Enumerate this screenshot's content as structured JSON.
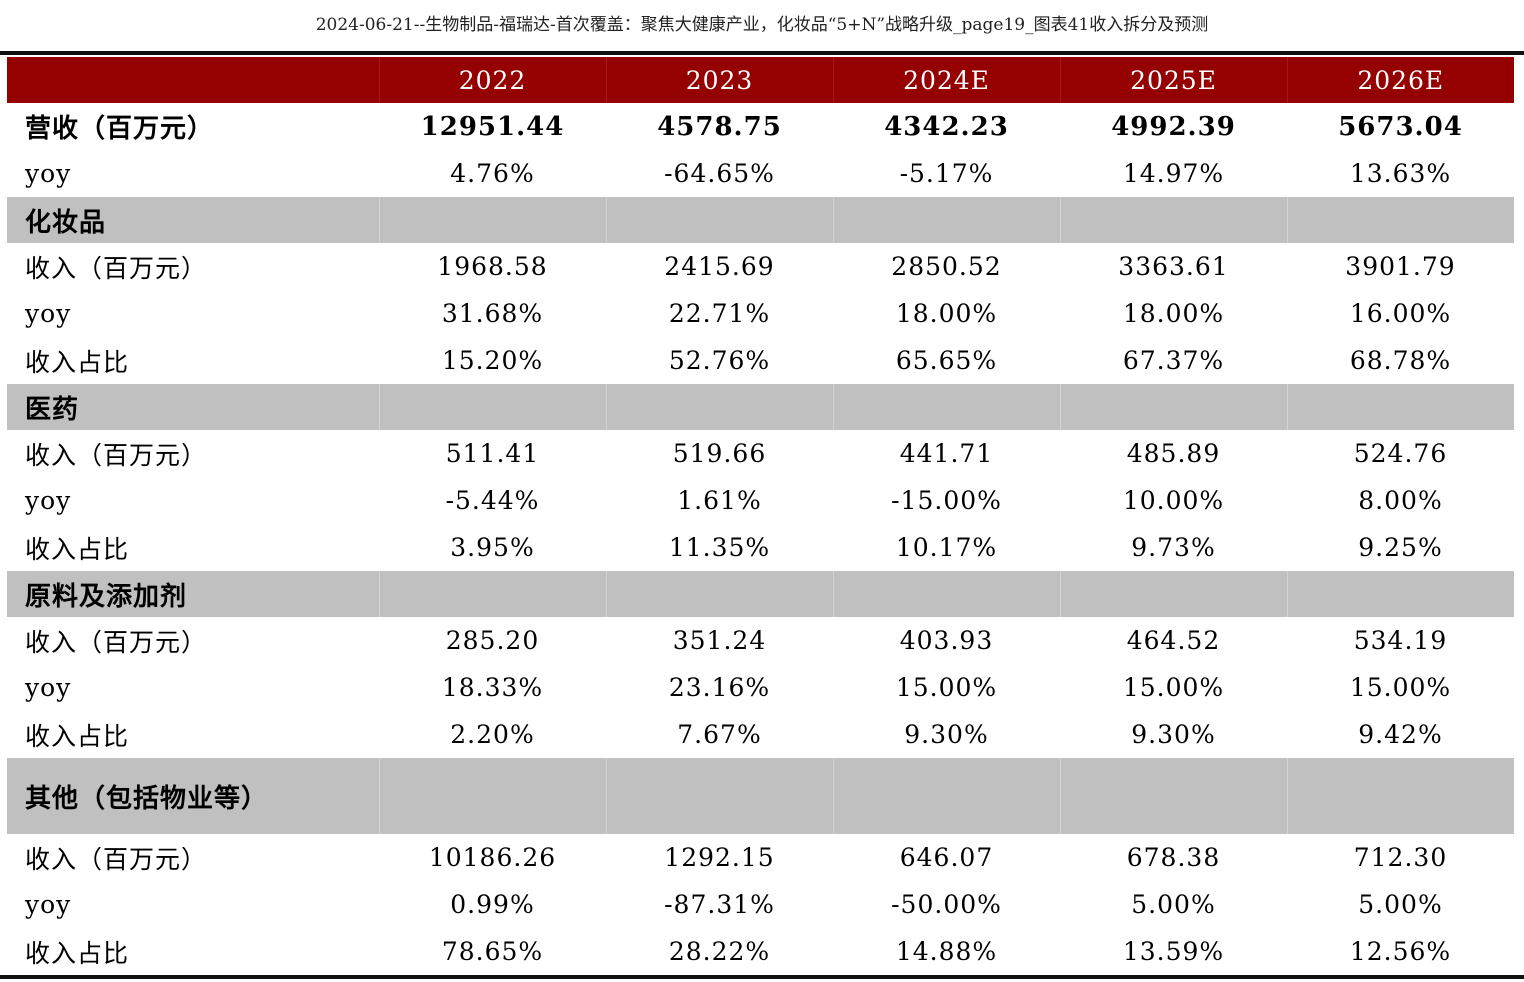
{
  "caption": "2024-06-21--生物制品-福瑞达-首次覆盖：聚焦大健康产业，化妆品“5+N”战略升级_page19_图表41收入拆分及预测",
  "header": [
    "",
    "2022",
    "2023",
    "2024E",
    "2025E",
    "2026E"
  ],
  "rows": [
    {
      "kind": "bold",
      "label": "营收（百万元）",
      "values": [
        "12951.44",
        "4578.75",
        "4342.23",
        "4992.39",
        "5673.04"
      ]
    },
    {
      "kind": "data",
      "label": "yoy",
      "values": [
        "4.76%",
        "-64.65%",
        "-5.17%",
        "14.97%",
        "13.63%"
      ]
    },
    {
      "kind": "section",
      "label": "化妆品"
    },
    {
      "kind": "data",
      "label": "收入（百万元）",
      "values": [
        "1968.58",
        "2415.69",
        "2850.52",
        "3363.61",
        "3901.79"
      ]
    },
    {
      "kind": "data",
      "label": "yoy",
      "values": [
        "31.68%",
        "22.71%",
        "18.00%",
        "18.00%",
        "16.00%"
      ]
    },
    {
      "kind": "data",
      "label": "收入占比",
      "values": [
        "15.20%",
        "52.76%",
        "65.65%",
        "67.37%",
        "68.78%"
      ]
    },
    {
      "kind": "section",
      "label": "医药"
    },
    {
      "kind": "data",
      "label": "收入（百万元）",
      "values": [
        "511.41",
        "519.66",
        "441.71",
        "485.89",
        "524.76"
      ]
    },
    {
      "kind": "data",
      "label": "yoy",
      "values": [
        "-5.44%",
        "1.61%",
        "-15.00%",
        "10.00%",
        "8.00%"
      ]
    },
    {
      "kind": "data",
      "label": "收入占比",
      "values": [
        "3.95%",
        "11.35%",
        "10.17%",
        "9.73%",
        "9.25%"
      ]
    },
    {
      "kind": "section",
      "label": "原料及添加剂"
    },
    {
      "kind": "data",
      "label": "收入（百万元）",
      "values": [
        "285.20",
        "351.24",
        "403.93",
        "464.52",
        "534.19"
      ]
    },
    {
      "kind": "data",
      "label": "yoy",
      "values": [
        "18.33%",
        "23.16%",
        "15.00%",
        "15.00%",
        "15.00%"
      ]
    },
    {
      "kind": "data",
      "label": "收入占比",
      "values": [
        "2.20%",
        "7.67%",
        "9.30%",
        "9.30%",
        "9.42%"
      ]
    },
    {
      "kind": "section-tall",
      "label": "其他（包括物业等）"
    },
    {
      "kind": "data",
      "label": "收入（百万元）",
      "values": [
        "10186.26",
        "1292.15",
        "646.07",
        "678.38",
        "712.30"
      ]
    },
    {
      "kind": "data",
      "label": "yoy",
      "values": [
        "0.99%",
        "-87.31%",
        "-50.00%",
        "5.00%",
        "5.00%"
      ]
    },
    {
      "kind": "data",
      "label": "收入占比",
      "values": [
        "78.65%",
        "28.22%",
        "14.88%",
        "13.59%",
        "12.56%"
      ]
    }
  ],
  "colors": {
    "header_bg": "#950000",
    "header_text": "#ffffff",
    "section_bg": "#c0c0c0",
    "rule": "#111111"
  }
}
